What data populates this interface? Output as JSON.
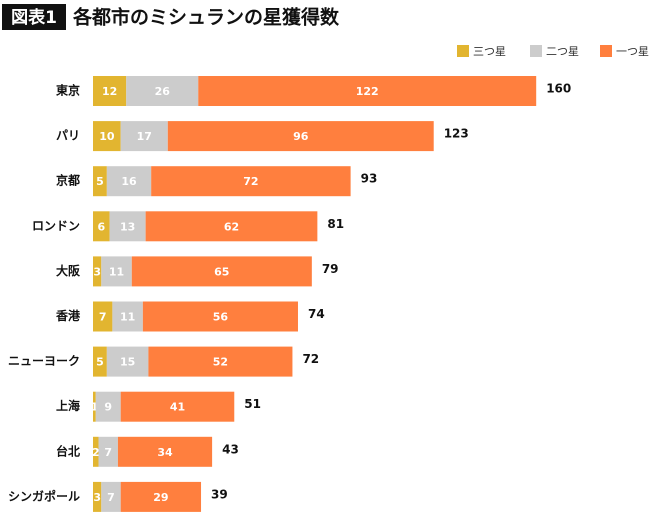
{
  "chart_data": {
    "type": "stacked-bar-horizontal",
    "label": "図表1",
    "title": "各都市のミシュランの星獲得数",
    "categories": [
      "東京",
      "パリ",
      "京都",
      "ロンドン",
      "大阪",
      "香港",
      "ニューヨーク",
      "上海",
      "台北",
      "シンガポール"
    ],
    "series": [
      {
        "name": "三つ星",
        "color": "#e2b530",
        "values": [
          12,
          10,
          5,
          6,
          3,
          7,
          5,
          1,
          2,
          3
        ]
      },
      {
        "name": "二つ星",
        "color": "#cccccc",
        "values": [
          26,
          17,
          16,
          13,
          11,
          11,
          15,
          9,
          7,
          7
        ]
      },
      {
        "name": "一つ星",
        "color": "#ff7f3e",
        "values": [
          122,
          96,
          72,
          62,
          65,
          56,
          52,
          41,
          34,
          29
        ]
      }
    ],
    "totals": [
      160,
      123,
      93,
      81,
      79,
      74,
      72,
      51,
      43,
      39
    ]
  }
}
